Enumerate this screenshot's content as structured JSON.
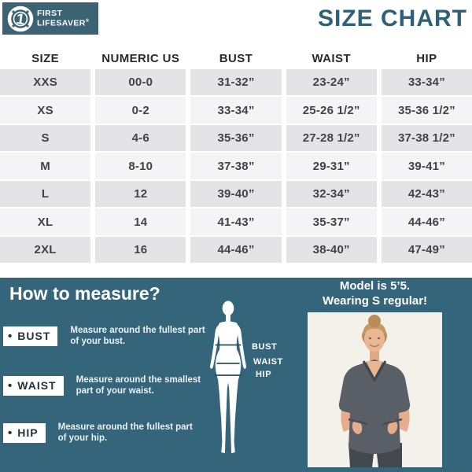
{
  "brand": {
    "name_line1": "FIRST",
    "name_line2": "LIFESAVER",
    "registered_mark": "®",
    "logo_icon": "lifesaver-ring-with-1"
  },
  "page_title": "SIZE CHART",
  "table": {
    "headers": [
      "SIZE",
      "NUMERIC US",
      "BUST",
      "WAIST",
      "HIP"
    ],
    "rows": [
      [
        "XXS",
        "00-0",
        "31-32”",
        "23-24”",
        "33-34”"
      ],
      [
        "XS",
        "0-2",
        "33-34”",
        "25-26 1/2”",
        "35-36 1/2”"
      ],
      [
        "S",
        "4-6",
        "35-36”",
        "27-28 1/2”",
        "37-38 1/2”"
      ],
      [
        "M",
        "8-10",
        "37-38”",
        "29-31”",
        "39-41”"
      ],
      [
        "L",
        "12",
        "39-40”",
        "32-34”",
        "42-43”"
      ],
      [
        "XL",
        "14",
        "41-43”",
        "35-37”",
        "44-46”"
      ],
      [
        "2XL",
        "16",
        "44-46”",
        "38-40”",
        "47-49”"
      ]
    ]
  },
  "how_to_measure": {
    "title": "How to measure?",
    "bullet_icon": "•",
    "items": [
      {
        "label": "BUST",
        "description": "Measure around the fullest part of your bust."
      },
      {
        "label": "WAIST",
        "description": "Measure around the smallest part of your waist."
      },
      {
        "label": "HIP",
        "description": "Measure around the fullest part of your hip."
      }
    ],
    "figure_labels": {
      "bust": "BUST",
      "waist": "WAIST",
      "hip": "HIP"
    }
  },
  "model": {
    "caption_line1": "Model is 5’5.",
    "caption_line2": "Wearing S regular!"
  },
  "colors": {
    "panel_teal": "#35657a",
    "logo_band": "#3c6374",
    "title_text": "#2e6077",
    "row_dark": "#e4e4e6",
    "row_light": "#f4f4f6",
    "measure_line": "#2a4d5e"
  }
}
